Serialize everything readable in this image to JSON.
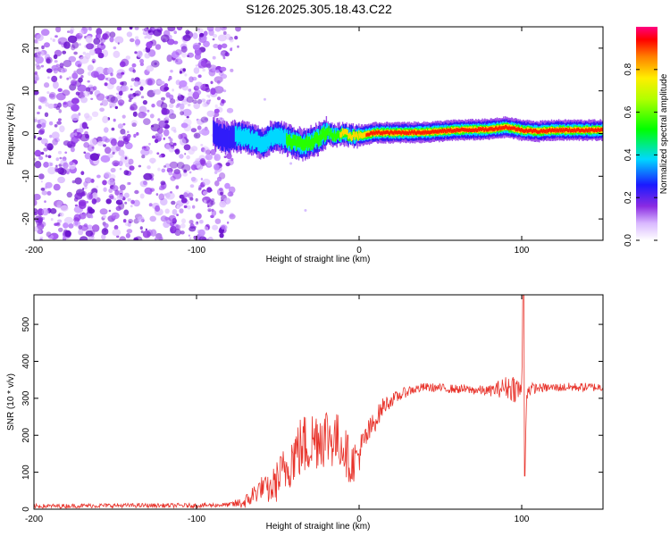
{
  "title": "S126.2025.305.18.43.C22",
  "colors": {
    "snr_line": "#e8332b",
    "axis": "#000000"
  },
  "chart_data": [
    {
      "type": "heatmap",
      "name": "spectrogram",
      "xlabel": "Height of straight line (km)",
      "ylabel": "Frequency (Hz)",
      "xlim": [
        -200,
        150
      ],
      "ylim": [
        -25,
        25
      ],
      "xticks": [
        -200,
        -100,
        0,
        100
      ],
      "yticks": [
        20,
        10,
        0,
        -10,
        -20
      ],
      "noise_region_x": [
        -200,
        -78
      ],
      "signal_ridge": {
        "x": [
          -90,
          -85,
          -80,
          -75,
          -70,
          -65,
          -60,
          -55,
          -50,
          -45,
          -40,
          -35,
          -30,
          -25,
          -20,
          -15,
          -10,
          -5,
          0,
          10,
          20,
          40,
          60,
          80,
          90,
          100,
          110,
          120,
          150
        ],
        "freq_hz": [
          0,
          -0.8,
          -1.2,
          -0.5,
          -1.0,
          -1.5,
          -2.5,
          -1.0,
          -0.5,
          -1.5,
          -2.0,
          -2.5,
          -2.0,
          -1.2,
          0.5,
          -0.5,
          0.0,
          -0.5,
          -0.5,
          0.2,
          0.2,
          0.3,
          0.8,
          1.0,
          1.5,
          0.8,
          0.5,
          0.8,
          0.8
        ],
        "amplitude": [
          0.25,
          0.3,
          0.3,
          0.35,
          0.35,
          0.4,
          0.4,
          0.45,
          0.45,
          0.5,
          0.5,
          0.55,
          0.6,
          0.65,
          0.7,
          0.7,
          0.75,
          0.8,
          0.85,
          0.9,
          0.9,
          0.9,
          0.95,
          0.95,
          0.95,
          0.9,
          0.95,
          0.95,
          0.95
        ]
      }
    },
    {
      "type": "line",
      "name": "snr",
      "xlabel": "Height of straight line (km)",
      "ylabel": "SNR (10 * v/v)",
      "xlim": [
        -200,
        150
      ],
      "ylim": [
        0,
        580
      ],
      "xticks": [
        -200,
        -100,
        0,
        100
      ],
      "yticks": [
        0,
        100,
        200,
        300,
        400,
        500
      ],
      "series": [
        {
          "name": "SNR",
          "x": [
            -200,
            -150,
            -100,
            -80,
            -70,
            -65,
            -60,
            -55,
            -50,
            -45,
            -40,
            -35,
            -30,
            -25,
            -20,
            -15,
            -10,
            -5,
            0,
            5,
            10,
            15,
            20,
            30,
            40,
            60,
            80,
            90,
            95,
            100,
            101,
            102,
            103,
            105,
            110,
            130,
            150
          ],
          "values": [
            8,
            10,
            10,
            12,
            18,
            40,
            60,
            50,
            80,
            110,
            150,
            170,
            180,
            200,
            200,
            190,
            175,
            120,
            150,
            200,
            240,
            280,
            295,
            320,
            330,
            325,
            320,
            330,
            330,
            320,
            580,
            100,
            320,
            325,
            328,
            330,
            330
          ],
          "noise": [
            6,
            6,
            6,
            6,
            20,
            30,
            30,
            40,
            60,
            70,
            80,
            90,
            90,
            90,
            90,
            80,
            70,
            60,
            50,
            40,
            30,
            25,
            18,
            14,
            12,
            12,
            14,
            30,
            40,
            30,
            0,
            0,
            30,
            18,
            12,
            12,
            12
          ]
        }
      ]
    },
    {
      "type": "colorbar",
      "name": "colorbar",
      "label": "Normalized spectral amplitude",
      "range": [
        0,
        1
      ],
      "ticks": [
        "0.0",
        "0.2",
        "0.4",
        "0.6",
        "0.8"
      ],
      "tick_values": [
        0,
        0.2,
        0.4,
        0.6,
        0.8
      ]
    }
  ]
}
